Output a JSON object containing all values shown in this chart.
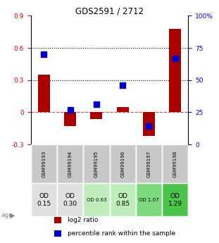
{
  "title": "GDS2591 / 2712",
  "samples": [
    "GSM99193",
    "GSM99194",
    "GSM99195",
    "GSM99196",
    "GSM99197",
    "GSM99198"
  ],
  "log2_ratio": [
    0.35,
    -0.13,
    -0.06,
    0.05,
    -0.22,
    0.78
  ],
  "percentile_rank": [
    0.7,
    0.27,
    0.31,
    0.46,
    0.14,
    0.67
  ],
  "age_labels": [
    "OD\n0.15",
    "OD\n0.30",
    "OD 0.63",
    "OD\n0.85",
    "OD 1.07",
    "OD\n1.29"
  ],
  "age_fontsize_large": [
    true,
    true,
    false,
    true,
    false,
    true
  ],
  "age_bg_colors": [
    "#e0e0e0",
    "#e0e0e0",
    "#c0edbc",
    "#c0edbc",
    "#7dd97d",
    "#4cc44c"
  ],
  "bar_color": "#aa0000",
  "dot_color": "#0000cc",
  "sample_bg_color": "#c8c8c8",
  "ylim_left": [
    -0.3,
    0.9
  ],
  "ylim_right": [
    0.0,
    1.0
  ],
  "yticks_left": [
    -0.3,
    0.0,
    0.3,
    0.6,
    0.9
  ],
  "yticks_right_vals": [
    0.0,
    0.25,
    0.5,
    0.75,
    1.0
  ],
  "yticks_right_labels": [
    "0",
    "25",
    "50",
    "75",
    "100%"
  ],
  "hlines": [
    0.3,
    0.6
  ],
  "hline_zero": 0.0,
  "bar_width": 0.45,
  "dot_size": 28
}
